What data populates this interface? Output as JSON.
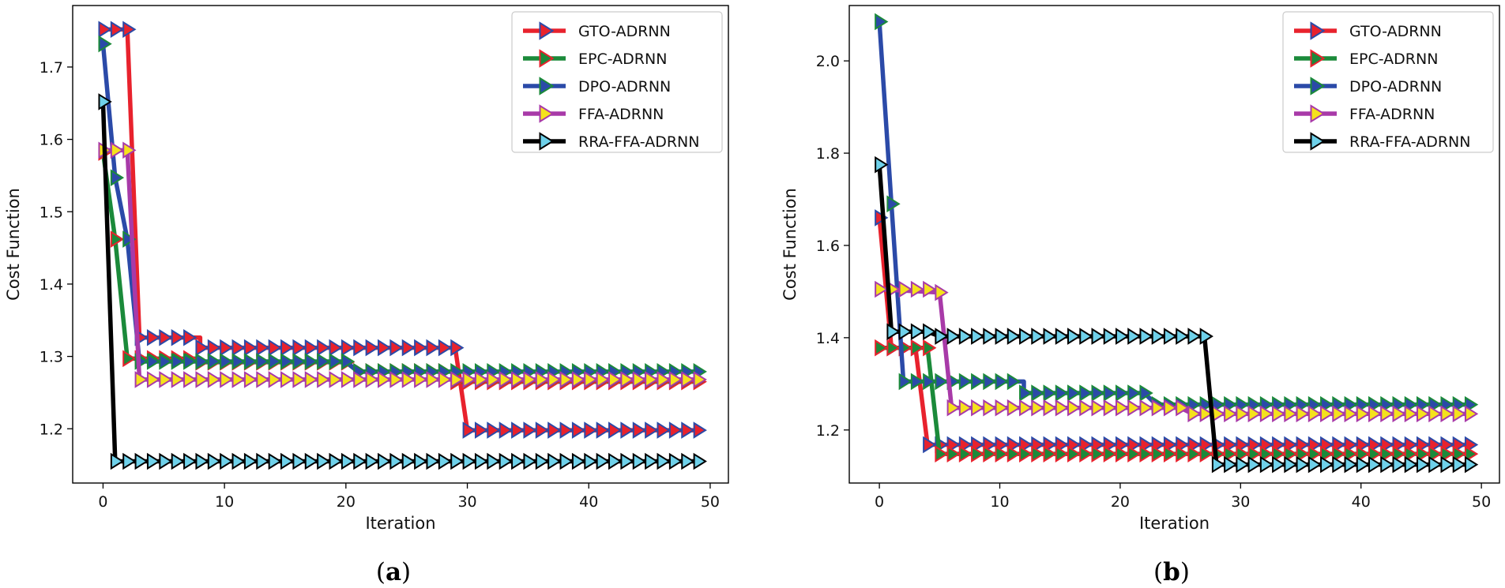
{
  "chart_data": [
    {
      "type": "line",
      "panel": "a",
      "caption_open": "(",
      "caption_letter": "a",
      "caption_close": ")",
      "xlabel": "Iteration",
      "ylabel": "Cost Function",
      "xlim": [
        -2.5,
        51.5
      ],
      "ylim": [
        1.125,
        1.785
      ],
      "xticks": [
        0,
        10,
        20,
        30,
        40,
        50
      ],
      "yticks": [
        1.2,
        1.3,
        1.4,
        1.5,
        1.6,
        1.7
      ],
      "ytick_labels": [
        "1.2",
        "1.3",
        "1.4",
        "1.5",
        "1.6",
        "1.7"
      ],
      "legend_position": "top-right",
      "series": [
        {
          "name": "GTO-ADRNN",
          "line_color": "#e8222d",
          "marker_color": "#e8222d",
          "edge_color": "#2b4aa8",
          "points": [
            [
              0,
              1.752
            ],
            [
              1,
              1.752
            ],
            [
              2,
              1.752
            ],
            [
              3,
              1.326
            ],
            [
              8,
              1.326
            ],
            [
              8,
              1.312
            ],
            [
              29,
              1.312
            ],
            [
              30,
              1.198
            ],
            [
              49,
              1.198
            ]
          ]
        },
        {
          "name": "EPC-ADRNN",
          "line_color": "#1b8a3a",
          "marker_color": "#1b8a3a",
          "edge_color": "#e8222d",
          "points": [
            [
              0,
              1.582
            ],
            [
              1,
              1.462
            ],
            [
              2,
              1.297
            ],
            [
              3,
              1.297
            ],
            [
              8,
              1.297
            ],
            [
              8,
              1.292
            ],
            [
              20,
              1.292
            ],
            [
              21,
              1.279
            ],
            [
              29,
              1.279
            ],
            [
              29,
              1.265
            ],
            [
              49,
              1.265
            ]
          ]
        },
        {
          "name": "DPO-ADRNN",
          "line_color": "#2b4aa8",
          "marker_color": "#2b4aa8",
          "edge_color": "#1b8a3a",
          "points": [
            [
              0,
              1.732
            ],
            [
              1,
              1.547
            ],
            [
              2,
              1.462
            ],
            [
              3,
              1.293
            ],
            [
              20,
              1.293
            ],
            [
              21,
              1.279
            ],
            [
              49,
              1.279
            ]
          ]
        },
        {
          "name": "FFA-ADRNN",
          "line_color": "#a83aa8",
          "marker_color": "#f5e21c",
          "edge_color": "#a83aa8",
          "points": [
            [
              0,
              1.585
            ],
            [
              1,
              1.585
            ],
            [
              2,
              1.585
            ],
            [
              3,
              1.268
            ],
            [
              49,
              1.268
            ]
          ]
        },
        {
          "name": "RRA-FFA-ADRNN",
          "line_color": "#000000",
          "marker_color": "#6fd1ea",
          "edge_color": "#000000",
          "points": [
            [
              0,
              1.652
            ],
            [
              1,
              1.155
            ],
            [
              49,
              1.155
            ]
          ]
        }
      ]
    },
    {
      "type": "line",
      "panel": "b",
      "caption_open": "(",
      "caption_letter": "b",
      "caption_close": ")",
      "xlabel": "Iteration",
      "ylabel": "Cost Function",
      "xlim": [
        -2.5,
        51.5
      ],
      "ylim": [
        1.085,
        2.12
      ],
      "xticks": [
        0,
        10,
        20,
        30,
        40,
        50
      ],
      "yticks": [
        1.2,
        1.4,
        1.6,
        1.8,
        2.0
      ],
      "ytick_labels": [
        "1.2",
        "1.4",
        "1.6",
        "1.8",
        "2.0"
      ],
      "legend_position": "top-right",
      "series": [
        {
          "name": "GTO-ADRNN",
          "line_color": "#e8222d",
          "marker_color": "#e8222d",
          "edge_color": "#2b4aa8",
          "points": [
            [
              0,
              1.66
            ],
            [
              1,
              1.378
            ],
            [
              2,
              1.378
            ],
            [
              3,
              1.378
            ],
            [
              4,
              1.168
            ],
            [
              49,
              1.168
            ]
          ]
        },
        {
          "name": "EPC-ADRNN",
          "line_color": "#1b8a3a",
          "marker_color": "#1b8a3a",
          "edge_color": "#e8222d",
          "points": [
            [
              0,
              1.378
            ],
            [
              4,
              1.378
            ],
            [
              5,
              1.148
            ],
            [
              49,
              1.148
            ]
          ]
        },
        {
          "name": "DPO-ADRNN",
          "line_color": "#2b4aa8",
          "marker_color": "#2b4aa8",
          "edge_color": "#1b8a3a",
          "points": [
            [
              0,
              2.085
            ],
            [
              1,
              1.69
            ],
            [
              2,
              1.305
            ],
            [
              12,
              1.305
            ],
            [
              12,
              1.28
            ],
            [
              22,
              1.28
            ],
            [
              23,
              1.255
            ],
            [
              49,
              1.255
            ]
          ]
        },
        {
          "name": "FFA-ADRNN",
          "line_color": "#a83aa8",
          "marker_color": "#f5e21c",
          "edge_color": "#a83aa8",
          "points": [
            [
              0,
              1.505
            ],
            [
              5,
              1.498
            ],
            [
              6,
              1.248
            ],
            [
              25,
              1.248
            ],
            [
              26,
              1.235
            ],
            [
              49,
              1.235
            ]
          ]
        },
        {
          "name": "RRA-FFA-ADRNN",
          "line_color": "#000000",
          "marker_color": "#6fd1ea",
          "edge_color": "#000000",
          "points": [
            [
              0,
              1.775
            ],
            [
              1,
              1.413
            ],
            [
              4,
              1.413
            ],
            [
              5,
              1.403
            ],
            [
              27,
              1.403
            ],
            [
              28,
              1.125
            ],
            [
              49,
              1.125
            ]
          ]
        }
      ]
    }
  ]
}
